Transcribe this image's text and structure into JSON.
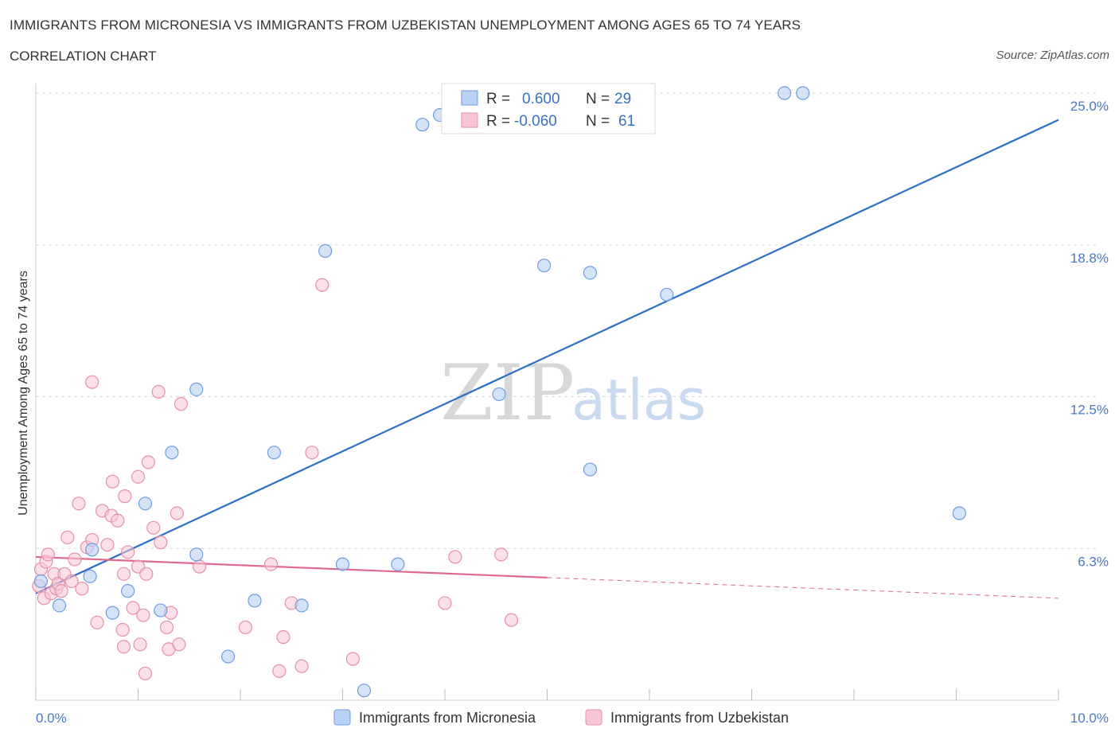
{
  "header": {
    "title": "IMMIGRANTS FROM MICRONESIA VS IMMIGRANTS FROM UZBEKISTAN UNEMPLOYMENT AMONG AGES 65 TO 74 YEARS",
    "subtitle": "CORRELATION CHART",
    "source": "Source: ZipAtlas.com"
  },
  "watermark": {
    "zip": "ZIP",
    "atlas": "atlas"
  },
  "legend": {
    "micronesia": {
      "r_label": "R =",
      "r_value": "0.600",
      "n_label": "N =",
      "n_value": "29"
    },
    "uzbekistan": {
      "r_label": "R =",
      "r_value": "-0.060",
      "n_label": "N =",
      "n_value": "61"
    }
  },
  "colors": {
    "micronesia_fill": "#b9d1f4",
    "micronesia_stroke": "#6d9de0",
    "micronesia_line": "#2c6fc9",
    "uzbekistan_fill": "#f7c6d6",
    "uzbekistan_stroke": "#e68fac",
    "uzbekistan_line": "#e0698f"
  },
  "chart_data": {
    "type": "scatter",
    "title": "IMMIGRANTS FROM MICRONESIA VS IMMIGRANTS FROM UZBEKISTAN UNEMPLOYMENT AMONG AGES 65 TO 74 YEARS",
    "subtitle": "CORRELATION CHART",
    "ylabel": "Unemployment Among Ages 65 to 74 years",
    "xlim": [
      0,
      10
    ],
    "ylim": [
      0,
      25
    ],
    "x_tick_labels": [
      {
        "value": 0,
        "label": "0.0%"
      },
      {
        "value": 10,
        "label": "10.0%"
      }
    ],
    "y_tick_labels": [
      {
        "value": 6.25,
        "label": "6.3%"
      },
      {
        "value": 12.5,
        "label": "12.5%"
      },
      {
        "value": 18.75,
        "label": "18.8%"
      },
      {
        "value": 25,
        "label": "25.0%"
      }
    ],
    "grid": true,
    "legend_position": "bottom",
    "series": [
      {
        "name": "Immigrants from Micronesia",
        "points": [
          [
            0.05,
            4.9
          ],
          [
            0.23,
            3.9
          ],
          [
            0.53,
            5.1
          ],
          [
            0.55,
            6.2
          ],
          [
            0.75,
            3.6
          ],
          [
            0.9,
            4.5
          ],
          [
            1.07,
            8.1
          ],
          [
            1.22,
            3.7
          ],
          [
            1.33,
            10.2
          ],
          [
            1.57,
            6.0
          ],
          [
            1.57,
            12.8
          ],
          [
            1.88,
            1.8
          ],
          [
            2.14,
            4.1
          ],
          [
            2.33,
            10.2
          ],
          [
            2.6,
            3.9
          ],
          [
            2.83,
            18.5
          ],
          [
            3.0,
            5.6
          ],
          [
            3.21,
            0.4
          ],
          [
            3.54,
            5.6
          ],
          [
            3.78,
            23.7
          ],
          [
            3.95,
            24.1
          ],
          [
            4.53,
            12.6
          ],
          [
            4.97,
            17.9
          ],
          [
            5.42,
            17.6
          ],
          [
            5.42,
            9.5
          ],
          [
            6.17,
            16.7
          ],
          [
            7.32,
            25.0
          ],
          [
            7.5,
            25.0
          ],
          [
            9.03,
            7.7
          ]
        ],
        "trend": {
          "x": [
            0,
            10
          ],
          "y": [
            4.4,
            23.9
          ]
        }
      },
      {
        "name": "Immigrants from Uzbekistan",
        "points": [
          [
            0.03,
            4.7
          ],
          [
            0.05,
            5.4
          ],
          [
            0.08,
            4.2
          ],
          [
            0.1,
            5.7
          ],
          [
            0.12,
            6.0
          ],
          [
            0.15,
            4.4
          ],
          [
            0.18,
            5.2
          ],
          [
            0.2,
            4.6
          ],
          [
            0.22,
            4.8
          ],
          [
            0.25,
            4.5
          ],
          [
            0.28,
            5.2
          ],
          [
            0.31,
            6.7
          ],
          [
            0.35,
            4.9
          ],
          [
            0.38,
            5.8
          ],
          [
            0.42,
            8.1
          ],
          [
            0.45,
            4.6
          ],
          [
            0.5,
            6.3
          ],
          [
            0.55,
            6.6
          ],
          [
            0.55,
            13.1
          ],
          [
            0.6,
            3.2
          ],
          [
            0.65,
            7.8
          ],
          [
            0.7,
            6.4
          ],
          [
            0.74,
            7.6
          ],
          [
            0.75,
            9.0
          ],
          [
            0.8,
            7.4
          ],
          [
            0.85,
            2.9
          ],
          [
            0.86,
            5.2
          ],
          [
            0.86,
            2.2
          ],
          [
            0.87,
            8.4
          ],
          [
            0.9,
            6.1
          ],
          [
            0.95,
            3.8
          ],
          [
            1.0,
            5.5
          ],
          [
            1.0,
            9.2
          ],
          [
            1.02,
            2.3
          ],
          [
            1.05,
            3.5
          ],
          [
            1.07,
            1.1
          ],
          [
            1.08,
            5.2
          ],
          [
            1.1,
            9.8
          ],
          [
            1.15,
            7.1
          ],
          [
            1.2,
            12.7
          ],
          [
            1.22,
            6.5
          ],
          [
            1.28,
            3.0
          ],
          [
            1.3,
            2.1
          ],
          [
            1.32,
            3.6
          ],
          [
            1.38,
            7.7
          ],
          [
            1.4,
            2.3
          ],
          [
            1.42,
            12.2
          ],
          [
            1.6,
            5.5
          ],
          [
            2.05,
            3.0
          ],
          [
            2.3,
            5.6
          ],
          [
            2.38,
            1.2
          ],
          [
            2.42,
            2.6
          ],
          [
            2.5,
            4.0
          ],
          [
            2.6,
            1.4
          ],
          [
            2.7,
            10.2
          ],
          [
            2.8,
            17.1
          ],
          [
            3.1,
            1.7
          ],
          [
            4.0,
            4.0
          ],
          [
            4.1,
            5.9
          ],
          [
            4.55,
            6.0
          ],
          [
            4.65,
            3.3
          ]
        ],
        "trend": {
          "x": [
            0,
            10
          ],
          "y": [
            5.9,
            4.2
          ]
        }
      }
    ]
  },
  "bottom_legend": {
    "micronesia_label": "Immigrants from Micronesia",
    "uzbekistan_label": "Immigrants from Uzbekistan"
  }
}
